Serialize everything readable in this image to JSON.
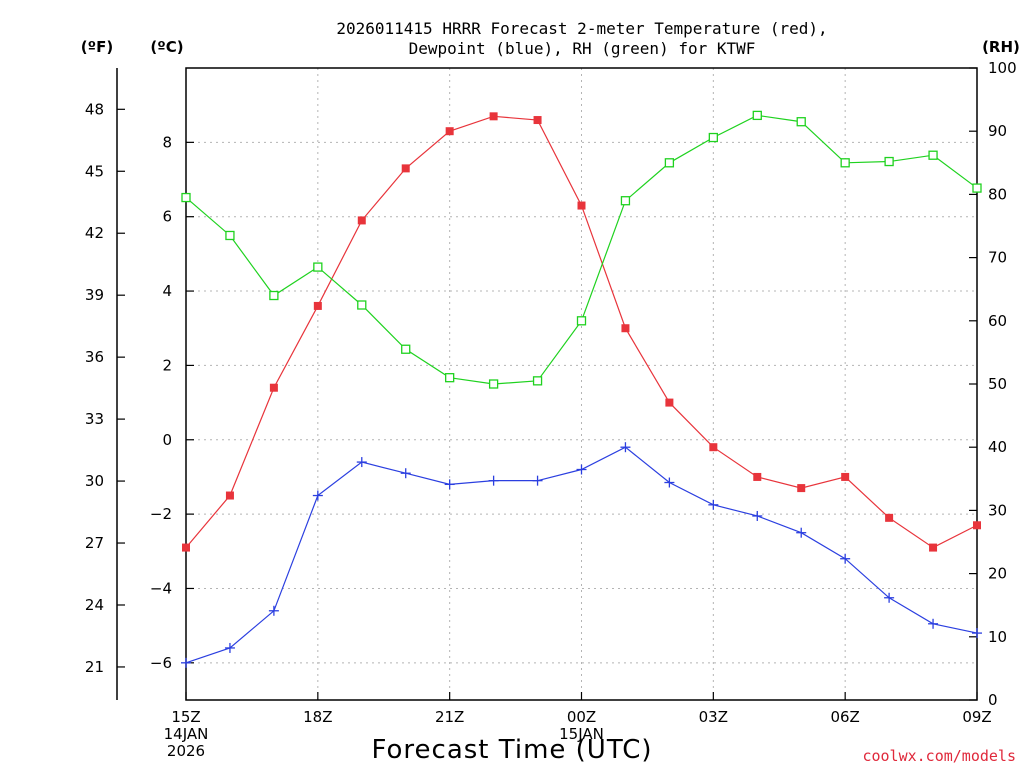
{
  "title_line1": "2026011415 HRRR Forecast 2-meter Temperature (red),",
  "title_line2": "Dewpoint (blue), RH (green) for KTWF",
  "credit": "coolwx.com/models",
  "colors": {
    "temperature": "#e8343b",
    "dewpoint": "#2b3fe0",
    "rh": "#1fd21f"
  },
  "chart_data": {
    "type": "line",
    "xlabel": "Forecast Time (UTC)",
    "x": [
      "15Z",
      "16Z",
      "17Z",
      "18Z",
      "19Z",
      "20Z",
      "21Z",
      "22Z",
      "23Z",
      "00Z",
      "01Z",
      "02Z",
      "03Z",
      "04Z",
      "05Z",
      "06Z",
      "07Z",
      "08Z",
      "09Z"
    ],
    "x_tick_labels": [
      {
        "at": "15Z",
        "lines": [
          "15Z",
          "14JAN",
          "2026"
        ]
      },
      {
        "at": "18Z",
        "lines": [
          "18Z"
        ]
      },
      {
        "at": "21Z",
        "lines": [
          "21Z"
        ]
      },
      {
        "at": "00Z",
        "lines": [
          "00Z",
          "15JAN"
        ]
      },
      {
        "at": "03Z",
        "lines": [
          "03Z"
        ]
      },
      {
        "at": "06Z",
        "lines": [
          "06Z"
        ]
      },
      {
        "at": "09Z",
        "lines": [
          "09Z"
        ]
      }
    ],
    "axes": {
      "celsius": {
        "label": "(ºC)",
        "range": [
          -7,
          10
        ],
        "ticks": [
          "8",
          "6",
          "4",
          "2",
          "0",
          "−2",
          "−4",
          "−6"
        ],
        "tick_values": [
          8,
          6,
          4,
          2,
          0,
          -2,
          -4,
          -6
        ]
      },
      "fahrenheit": {
        "label": "(ºF)",
        "ticks": [
          "48",
          "45",
          "42",
          "39",
          "36",
          "33",
          "30",
          "27",
          "24",
          "21"
        ],
        "tick_values": [
          48,
          45,
          42,
          39,
          36,
          33,
          30,
          27,
          24,
          21
        ]
      },
      "rh": {
        "label": "(RH)",
        "range": [
          0,
          100
        ],
        "ticks": [
          "100",
          "90",
          "80",
          "70",
          "60",
          "50",
          "40",
          "30",
          "20",
          "10",
          "0"
        ],
        "tick_values": [
          100,
          90,
          80,
          70,
          60,
          50,
          40,
          30,
          20,
          10,
          0
        ]
      }
    },
    "grid": true,
    "series": [
      {
        "key": "temperature",
        "axis": "celsius",
        "marker": "filled-square",
        "values": [
          -2.9,
          -1.5,
          1.4,
          3.6,
          5.9,
          7.3,
          8.3,
          8.7,
          8.6,
          6.3,
          3.0,
          1.0,
          -0.2,
          -1.0,
          -1.3,
          -1.0,
          -2.1,
          -2.9,
          -2.3
        ]
      },
      {
        "key": "dewpoint",
        "axis": "celsius",
        "marker": "plus",
        "values": [
          -6.0,
          -5.6,
          -4.6,
          -1.5,
          -0.6,
          -0.9,
          -1.2,
          -1.1,
          -1.1,
          -0.8,
          -0.2,
          -1.15,
          -1.75,
          -2.05,
          -2.5,
          -3.2,
          -4.25,
          -4.95,
          -5.2
        ]
      },
      {
        "key": "rh",
        "axis": "rh",
        "marker": "open-square",
        "values": [
          79.5,
          73.5,
          64,
          68.5,
          62.5,
          55.5,
          51,
          50,
          50.5,
          60,
          79,
          85,
          89,
          92.5,
          91.5,
          85,
          85.2,
          86.2,
          81
        ]
      }
    ]
  }
}
